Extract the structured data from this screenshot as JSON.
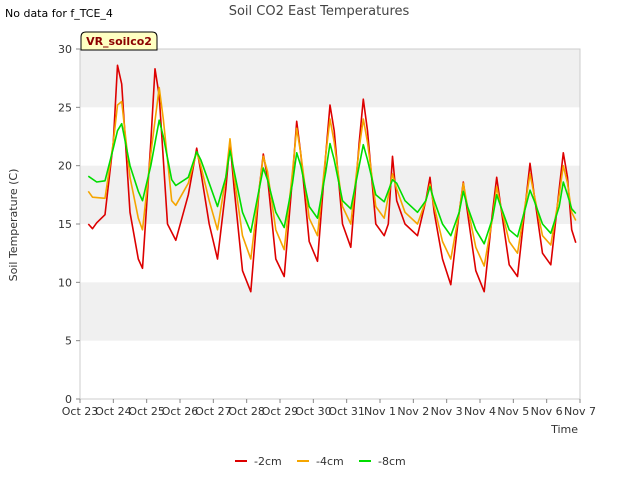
{
  "note": "No data for f_TCE_4",
  "badge": "VR_soilco2",
  "chart_data": {
    "type": "line",
    "title": "Soil CO2 East Temperatures",
    "xlabel": "Time",
    "ylabel": "Soil Temperature (C)",
    "xlim": [
      "2023-10-23",
      "2023-11-07"
    ],
    "ylim": [
      0,
      30
    ],
    "yticks": [
      0,
      5,
      10,
      15,
      20,
      25,
      30
    ],
    "xtick_labels": [
      "Oct 23",
      "Oct 24",
      "Oct 25",
      "Oct 26",
      "Oct 27",
      "Oct 28",
      "Oct 29",
      "Oct 30",
      "Oct 31",
      "Nov 1",
      "Nov 2",
      "Nov 3",
      "Nov 4",
      "Nov 5",
      "Nov 6",
      "Nov 7"
    ],
    "grid": "horizontal bands",
    "legend_position": "bottom",
    "series": [
      {
        "name": "-2cm",
        "color": "#dd0000",
        "points": [
          [
            "2023-10-23 06:00",
            15.0
          ],
          [
            "2023-10-23 09:00",
            14.6
          ],
          [
            "2023-10-23 12:00",
            15.1
          ],
          [
            "2023-10-23 18:00",
            15.8
          ],
          [
            "2023-10-24 00:00",
            22.0
          ],
          [
            "2023-10-24 03:00",
            28.6
          ],
          [
            "2023-10-24 06:00",
            27.0
          ],
          [
            "2023-10-24 12:00",
            16.0
          ],
          [
            "2023-10-24 18:00",
            12.0
          ],
          [
            "2023-10-24 21:00",
            11.2
          ],
          [
            "2023-10-25 03:00",
            22.0
          ],
          [
            "2023-10-25 06:00",
            28.3
          ],
          [
            "2023-10-25 09:00",
            26.0
          ],
          [
            "2023-10-25 15:00",
            15.0
          ],
          [
            "2023-10-25 21:00",
            13.6
          ],
          [
            "2023-10-26 06:00",
            17.5
          ],
          [
            "2023-10-26 12:00",
            21.5
          ],
          [
            "2023-10-26 15:00",
            19.5
          ],
          [
            "2023-10-26 21:00",
            15.0
          ],
          [
            "2023-10-27 03:00",
            12.0
          ],
          [
            "2023-10-27 09:00",
            18.0
          ],
          [
            "2023-10-27 12:00",
            22.0
          ],
          [
            "2023-10-27 15:00",
            18.0
          ],
          [
            "2023-10-27 21:00",
            11.0
          ],
          [
            "2023-10-28 03:00",
            9.2
          ],
          [
            "2023-10-28 09:00",
            18.0
          ],
          [
            "2023-10-28 12:00",
            21.0
          ],
          [
            "2023-10-28 15:00",
            19.0
          ],
          [
            "2023-10-28 21:00",
            12.0
          ],
          [
            "2023-10-29 03:00",
            10.5
          ],
          [
            "2023-10-29 09:00",
            19.0
          ],
          [
            "2023-10-29 12:00",
            23.8
          ],
          [
            "2023-10-29 15:00",
            21.0
          ],
          [
            "2023-10-29 21:00",
            13.5
          ],
          [
            "2023-10-30 03:00",
            11.8
          ],
          [
            "2023-10-30 09:00",
            21.0
          ],
          [
            "2023-10-30 12:00",
            25.2
          ],
          [
            "2023-10-30 15:00",
            23.0
          ],
          [
            "2023-10-30 21:00",
            15.0
          ],
          [
            "2023-10-31 03:00",
            13.0
          ],
          [
            "2023-10-31 09:00",
            22.0
          ],
          [
            "2023-10-31 12:00",
            25.7
          ],
          [
            "2023-10-31 15:00",
            23.0
          ],
          [
            "2023-10-31 21:00",
            15.0
          ],
          [
            "2023-11-01 03:00",
            14.0
          ],
          [
            "2023-11-01 06:00",
            15.0
          ],
          [
            "2023-11-01 09:00",
            20.8
          ],
          [
            "2023-11-01 12:00",
            17.0
          ],
          [
            "2023-11-01 18:00",
            15.0
          ],
          [
            "2023-11-02 03:00",
            14.0
          ],
          [
            "2023-11-02 09:00",
            17.0
          ],
          [
            "2023-11-02 12:00",
            19.0
          ],
          [
            "2023-11-02 15:00",
            16.0
          ],
          [
            "2023-11-02 21:00",
            12.0
          ],
          [
            "2023-11-03 03:00",
            9.8
          ],
          [
            "2023-11-03 09:00",
            16.0
          ],
          [
            "2023-11-03 12:00",
            18.6
          ],
          [
            "2023-11-03 15:00",
            16.0
          ],
          [
            "2023-11-03 21:00",
            11.0
          ],
          [
            "2023-11-04 03:00",
            9.2
          ],
          [
            "2023-11-04 09:00",
            16.0
          ],
          [
            "2023-11-04 12:00",
            19.0
          ],
          [
            "2023-11-04 15:00",
            16.5
          ],
          [
            "2023-11-04 21:00",
            11.5
          ],
          [
            "2023-11-05 03:00",
            10.5
          ],
          [
            "2023-11-05 09:00",
            17.0
          ],
          [
            "2023-11-05 12:00",
            20.2
          ],
          [
            "2023-11-05 15:00",
            17.5
          ],
          [
            "2023-11-05 21:00",
            12.5
          ],
          [
            "2023-11-06 03:00",
            11.5
          ],
          [
            "2023-11-06 09:00",
            18.0
          ],
          [
            "2023-11-06 12:00",
            21.1
          ],
          [
            "2023-11-06 15:00",
            19.0
          ],
          [
            "2023-11-06 18:00",
            14.5
          ],
          [
            "2023-11-06 21:00",
            13.4
          ]
        ]
      },
      {
        "name": "-4cm",
        "color": "#f5a500",
        "points": [
          [
            "2023-10-23 06:00",
            17.8
          ],
          [
            "2023-10-23 09:00",
            17.3
          ],
          [
            "2023-10-23 18:00",
            17.2
          ],
          [
            "2023-10-24 00:00",
            22.0
          ],
          [
            "2023-10-24 03:00",
            25.2
          ],
          [
            "2023-10-24 06:00",
            25.5
          ],
          [
            "2023-10-24 12:00",
            19.0
          ],
          [
            "2023-10-24 18:00",
            15.5
          ],
          [
            "2023-10-24 21:00",
            14.5
          ],
          [
            "2023-10-25 03:00",
            21.0
          ],
          [
            "2023-10-25 09:00",
            26.7
          ],
          [
            "2023-10-25 12:00",
            24.0
          ],
          [
            "2023-10-25 18:00",
            17.0
          ],
          [
            "2023-10-25 21:00",
            16.6
          ],
          [
            "2023-10-26 06:00",
            18.5
          ],
          [
            "2023-10-26 12:00",
            21.2
          ],
          [
            "2023-10-26 15:00",
            20.0
          ],
          [
            "2023-10-26 21:00",
            17.0
          ],
          [
            "2023-10-27 03:00",
            14.5
          ],
          [
            "2023-10-27 09:00",
            19.0
          ],
          [
            "2023-10-27 12:00",
            22.3
          ],
          [
            "2023-10-27 15:00",
            19.0
          ],
          [
            "2023-10-27 21:00",
            14.0
          ],
          [
            "2023-10-28 03:00",
            12.0
          ],
          [
            "2023-10-28 09:00",
            18.0
          ],
          [
            "2023-10-28 12:00",
            20.8
          ],
          [
            "2023-10-28 15:00",
            19.5
          ],
          [
            "2023-10-28 21:00",
            14.5
          ],
          [
            "2023-10-29 03:00",
            12.8
          ],
          [
            "2023-10-29 09:00",
            19.5
          ],
          [
            "2023-10-29 12:00",
            23.2
          ],
          [
            "2023-10-29 15:00",
            21.0
          ],
          [
            "2023-10-29 21:00",
            15.5
          ],
          [
            "2023-10-30 03:00",
            14.0
          ],
          [
            "2023-10-30 09:00",
            21.0
          ],
          [
            "2023-10-30 12:00",
            24.0
          ],
          [
            "2023-10-30 15:00",
            22.0
          ],
          [
            "2023-10-30 21:00",
            16.5
          ],
          [
            "2023-10-31 03:00",
            15.0
          ],
          [
            "2023-10-31 09:00",
            21.5
          ],
          [
            "2023-10-31 12:00",
            24.0
          ],
          [
            "2023-10-31 15:00",
            22.0
          ],
          [
            "2023-10-31 21:00",
            16.5
          ],
          [
            "2023-11-01 03:00",
            15.5
          ],
          [
            "2023-11-01 09:00",
            19.3
          ],
          [
            "2023-11-01 12:00",
            18.0
          ],
          [
            "2023-11-01 18:00",
            16.0
          ],
          [
            "2023-11-02 03:00",
            15.0
          ],
          [
            "2023-11-02 09:00",
            17.0
          ],
          [
            "2023-11-02 12:00",
            18.4
          ],
          [
            "2023-11-02 15:00",
            16.5
          ],
          [
            "2023-11-02 21:00",
            13.5
          ],
          [
            "2023-11-03 03:00",
            12.0
          ],
          [
            "2023-11-03 09:00",
            16.0
          ],
          [
            "2023-11-03 12:00",
            18.5
          ],
          [
            "2023-11-03 15:00",
            16.5
          ],
          [
            "2023-11-03 21:00",
            13.0
          ],
          [
            "2023-11-04 03:00",
            11.4
          ],
          [
            "2023-11-04 09:00",
            15.5
          ],
          [
            "2023-11-04 12:00",
            18.2
          ],
          [
            "2023-11-04 15:00",
            16.5
          ],
          [
            "2023-11-04 21:00",
            13.5
          ],
          [
            "2023-11-05 03:00",
            12.5
          ],
          [
            "2023-11-05 09:00",
            17.0
          ],
          [
            "2023-11-05 12:00",
            19.3
          ],
          [
            "2023-11-05 15:00",
            17.5
          ],
          [
            "2023-11-05 21:00",
            14.0
          ],
          [
            "2023-11-06 03:00",
            13.2
          ],
          [
            "2023-11-06 09:00",
            17.5
          ],
          [
            "2023-11-06 12:00",
            20.0
          ],
          [
            "2023-11-06 15:00",
            18.5
          ],
          [
            "2023-11-06 18:00",
            16.0
          ],
          [
            "2023-11-06 21:00",
            15.3
          ]
        ]
      },
      {
        "name": "-8cm",
        "color": "#00dd00",
        "points": [
          [
            "2023-10-23 06:00",
            19.1
          ],
          [
            "2023-10-23 12:00",
            18.6
          ],
          [
            "2023-10-23 18:00",
            18.7
          ],
          [
            "2023-10-24 00:00",
            21.5
          ],
          [
            "2023-10-24 03:00",
            23.0
          ],
          [
            "2023-10-24 06:00",
            23.6
          ],
          [
            "2023-10-24 12:00",
            20.0
          ],
          [
            "2023-10-24 18:00",
            17.8
          ],
          [
            "2023-10-24 21:00",
            17.0
          ],
          [
            "2023-10-25 03:00",
            20.0
          ],
          [
            "2023-10-25 09:00",
            23.9
          ],
          [
            "2023-10-25 12:00",
            22.5
          ],
          [
            "2023-10-25 18:00",
            18.8
          ],
          [
            "2023-10-25 21:00",
            18.3
          ],
          [
            "2023-10-26 06:00",
            19.0
          ],
          [
            "2023-10-26 12:00",
            21.2
          ],
          [
            "2023-10-26 15:00",
            20.5
          ],
          [
            "2023-10-26 21:00",
            18.5
          ],
          [
            "2023-10-27 03:00",
            16.5
          ],
          [
            "2023-10-27 09:00",
            19.0
          ],
          [
            "2023-10-27 12:00",
            21.3
          ],
          [
            "2023-10-27 15:00",
            19.5
          ],
          [
            "2023-10-27 21:00",
            16.0
          ],
          [
            "2023-10-28 03:00",
            14.3
          ],
          [
            "2023-10-28 09:00",
            18.0
          ],
          [
            "2023-10-28 12:00",
            19.8
          ],
          [
            "2023-10-28 15:00",
            18.8
          ],
          [
            "2023-10-28 21:00",
            16.0
          ],
          [
            "2023-10-29 03:00",
            14.7
          ],
          [
            "2023-10-29 09:00",
            18.5
          ],
          [
            "2023-10-29 12:00",
            21.1
          ],
          [
            "2023-10-29 15:00",
            20.0
          ],
          [
            "2023-10-29 21:00",
            16.5
          ],
          [
            "2023-10-30 03:00",
            15.5
          ],
          [
            "2023-10-30 09:00",
            19.5
          ],
          [
            "2023-10-30 12:00",
            21.9
          ],
          [
            "2023-10-30 15:00",
            20.5
          ],
          [
            "2023-10-30 21:00",
            17.0
          ],
          [
            "2023-10-31 03:00",
            16.3
          ],
          [
            "2023-10-31 09:00",
            20.0
          ],
          [
            "2023-10-31 12:00",
            21.8
          ],
          [
            "2023-10-31 15:00",
            20.5
          ],
          [
            "2023-10-31 21:00",
            17.5
          ],
          [
            "2023-11-01 03:00",
            16.9
          ],
          [
            "2023-11-01 09:00",
            18.8
          ],
          [
            "2023-11-01 12:00",
            18.5
          ],
          [
            "2023-11-01 18:00",
            17.0
          ],
          [
            "2023-11-02 03:00",
            16.0
          ],
          [
            "2023-11-02 09:00",
            17.0
          ],
          [
            "2023-11-02 12:00",
            18.2
          ],
          [
            "2023-11-02 15:00",
            17.0
          ],
          [
            "2023-11-02 21:00",
            15.0
          ],
          [
            "2023-11-03 03:00",
            14.0
          ],
          [
            "2023-11-03 09:00",
            16.0
          ],
          [
            "2023-11-03 12:00",
            17.8
          ],
          [
            "2023-11-03 15:00",
            16.5
          ],
          [
            "2023-11-03 21:00",
            14.5
          ],
          [
            "2023-11-04 03:00",
            13.3
          ],
          [
            "2023-11-04 09:00",
            15.5
          ],
          [
            "2023-11-04 12:00",
            17.5
          ],
          [
            "2023-11-04 15:00",
            16.5
          ],
          [
            "2023-11-04 21:00",
            14.5
          ],
          [
            "2023-11-05 03:00",
            13.9
          ],
          [
            "2023-11-05 09:00",
            16.5
          ],
          [
            "2023-11-05 12:00",
            17.9
          ],
          [
            "2023-11-05 15:00",
            17.0
          ],
          [
            "2023-11-05 21:00",
            15.0
          ],
          [
            "2023-11-06 03:00",
            14.2
          ],
          [
            "2023-11-06 09:00",
            16.5
          ],
          [
            "2023-11-06 12:00",
            18.6
          ],
          [
            "2023-11-06 15:00",
            17.5
          ],
          [
            "2023-11-06 18:00",
            16.3
          ],
          [
            "2023-11-06 21:00",
            15.9
          ]
        ]
      }
    ]
  }
}
